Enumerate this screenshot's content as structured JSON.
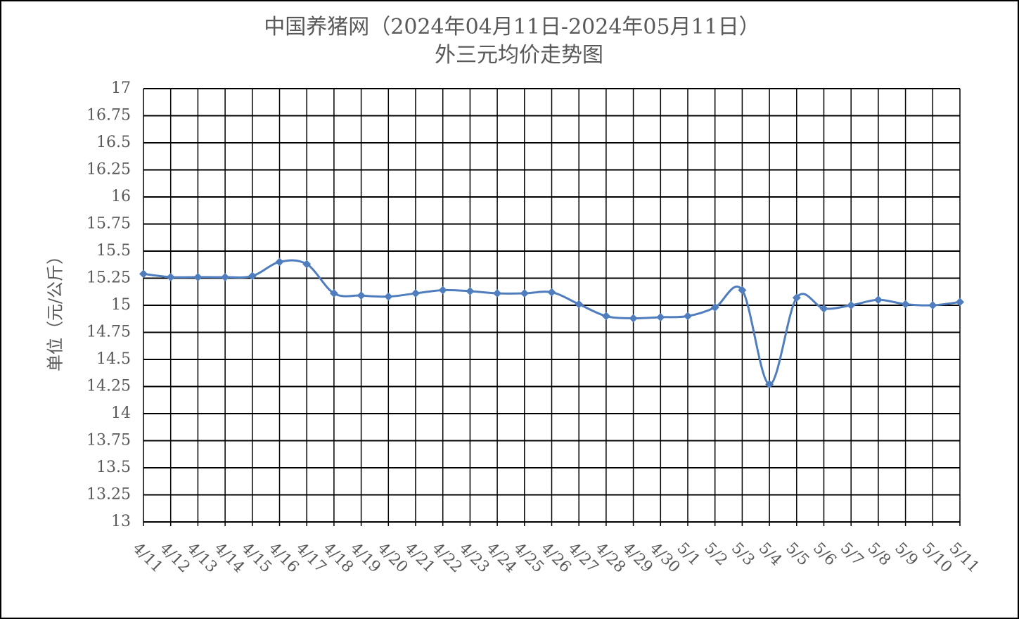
{
  "chart_data": {
    "type": "line",
    "title": "中国养猪网（2024年04月11日-2024年05月11日）",
    "subtitle": "外三元均价走势图",
    "y_label": "单位（元/公斤）",
    "categories": [
      "4/11",
      "4/12",
      "4/13",
      "4/14",
      "4/15",
      "4/16",
      "4/17",
      "4/18",
      "4/19",
      "4/20",
      "4/21",
      "4/22",
      "4/23",
      "4/24",
      "4/25",
      "4/26",
      "4/27",
      "4/28",
      "4/29",
      "4/30",
      "5/1",
      "5/2",
      "5/3",
      "5/4",
      "5/5",
      "5/6",
      "5/7",
      "5/8",
      "5/9",
      "5/10",
      "5/11"
    ],
    "values": [
      15.29,
      15.26,
      15.26,
      15.26,
      15.27,
      15.4,
      15.38,
      15.11,
      15.09,
      15.08,
      15.11,
      15.14,
      15.13,
      15.11,
      15.11,
      15.12,
      15.01,
      14.9,
      14.88,
      14.89,
      14.9,
      14.98,
      15.14,
      14.27,
      15.07,
      14.97,
      15.0,
      15.05,
      15.01,
      15.0,
      15.03
    ],
    "color": "#4f7dbd",
    "ylim": [
      13,
      17
    ],
    "yticks": [
      13,
      13.25,
      13.5,
      13.75,
      14,
      14.25,
      14.5,
      14.75,
      15,
      15.25,
      15.5,
      15.75,
      16,
      16.25,
      16.5,
      16.75,
      17
    ],
    "grid": true
  }
}
